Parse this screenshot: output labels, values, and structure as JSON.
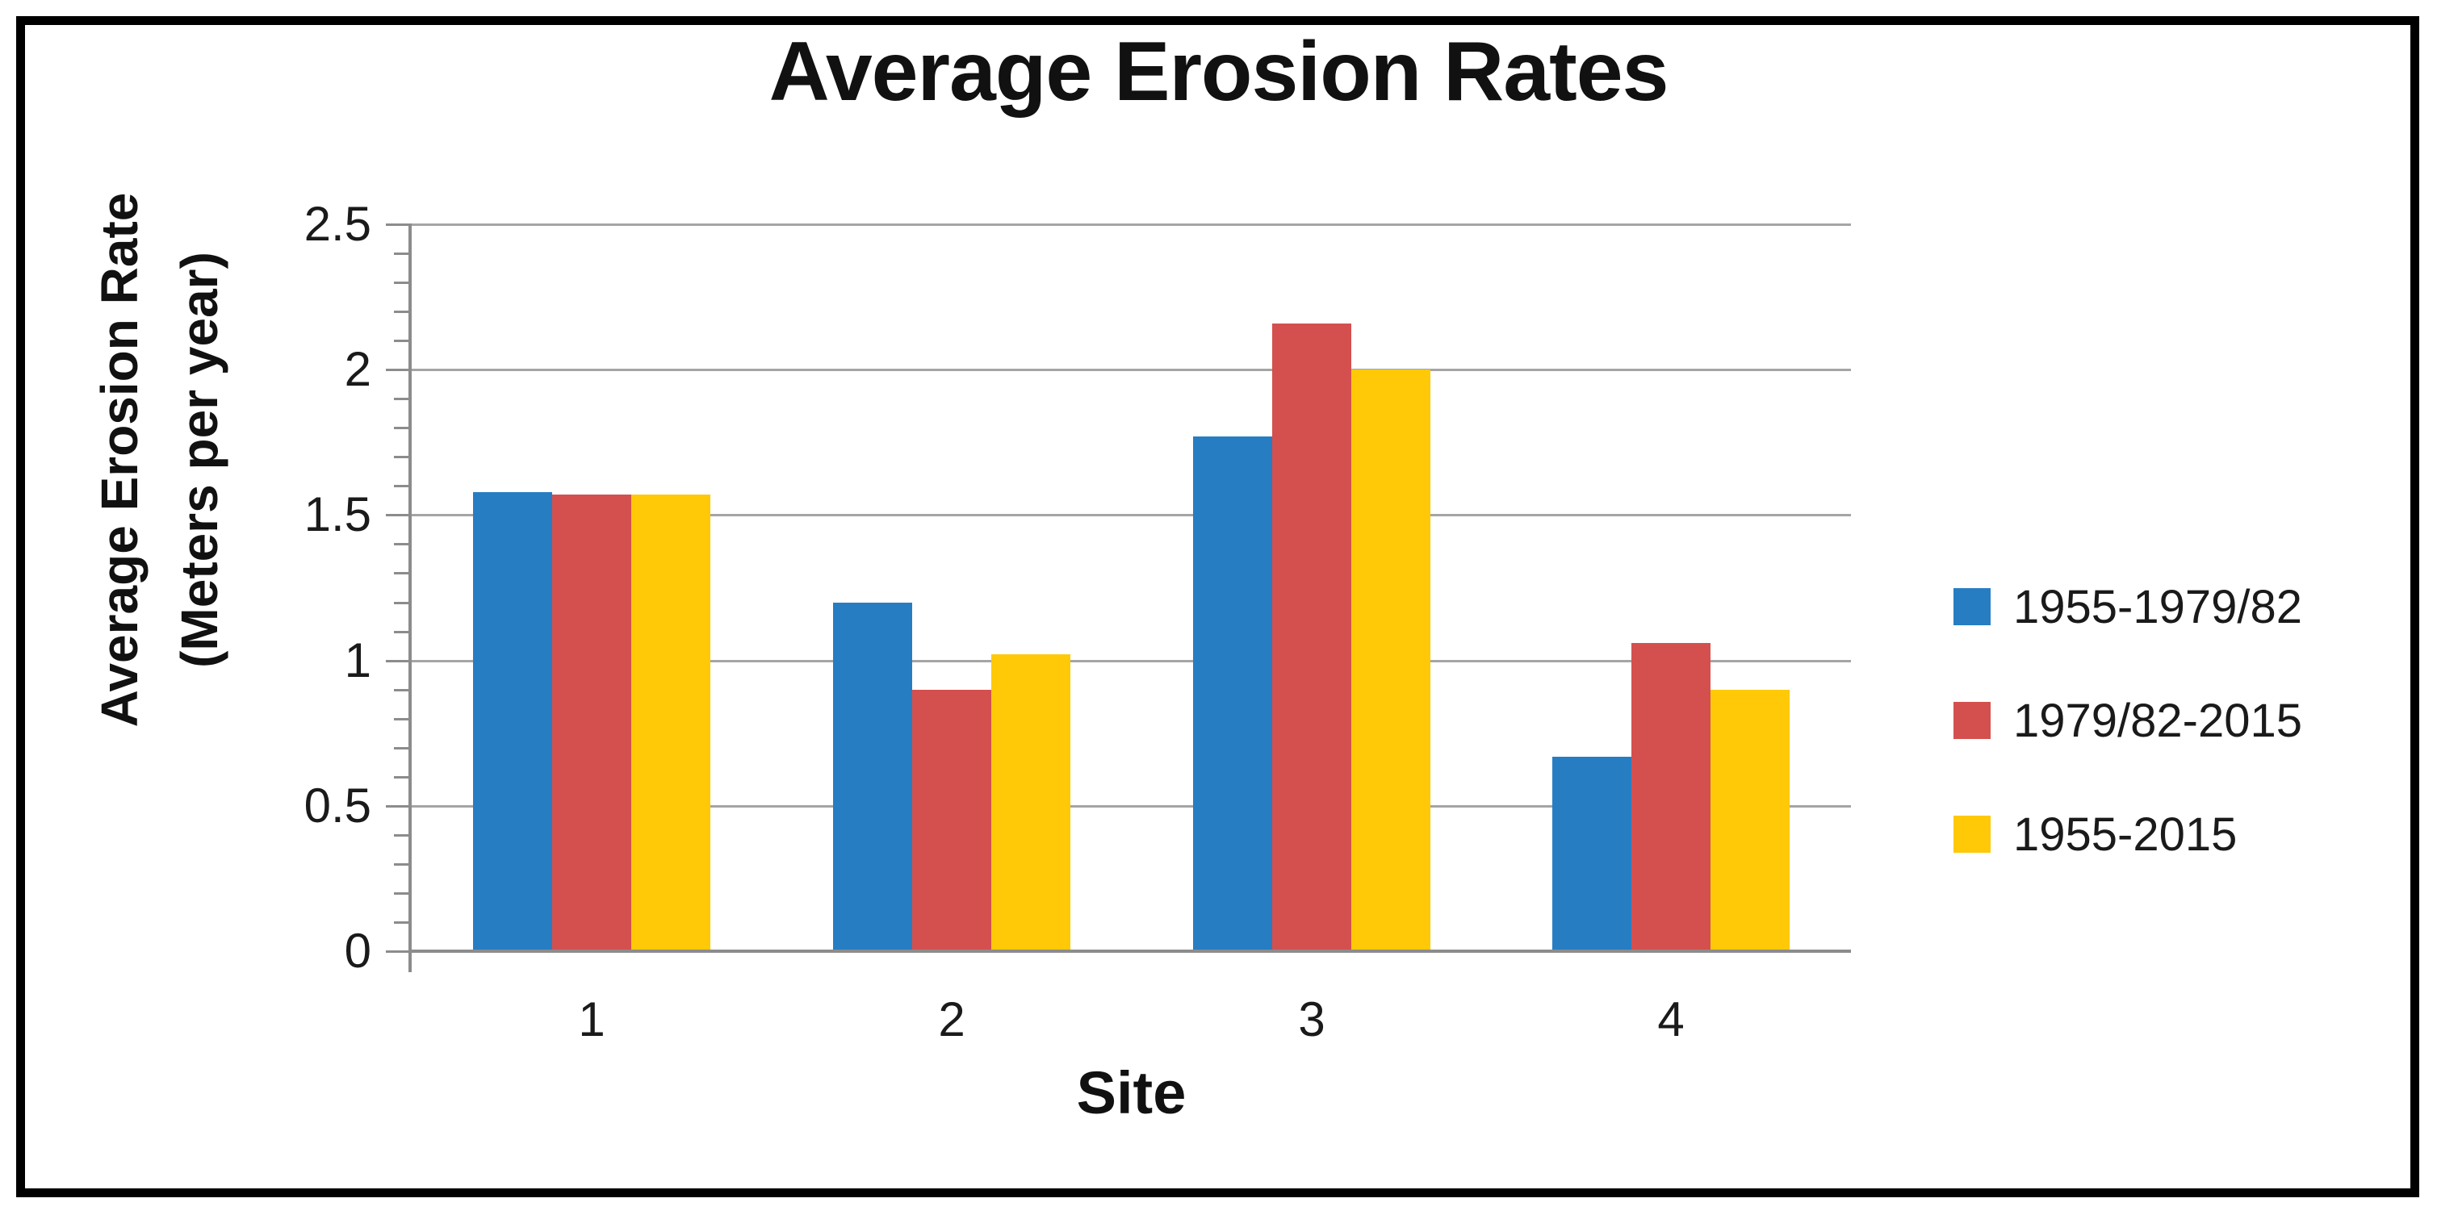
{
  "figure": {
    "border_color": "#000000",
    "background": "#ffffff"
  },
  "chart_data": {
    "type": "bar",
    "title": "Average Erosion Rates",
    "xlabel": "Site",
    "ylabel_lines": [
      "Average Erosion Rate",
      "(Meters per year)"
    ],
    "categories": [
      "1",
      "2",
      "3",
      "4"
    ],
    "series": [
      {
        "name": "1955-1979/82",
        "color": "#277DC2",
        "values": [
          1.58,
          1.2,
          1.77,
          0.67
        ]
      },
      {
        "name": "1979/82-2015",
        "color": "#D4504E",
        "values": [
          1.57,
          0.9,
          2.16,
          1.06
        ]
      },
      {
        "name": "1955-2015",
        "color": "#FFC907",
        "values": [
          1.57,
          1.02,
          2.0,
          0.9
        ]
      }
    ],
    "ylim": [
      0,
      2.5
    ],
    "ytick_step": 0.5,
    "ytick_labels": [
      "0",
      "0.5",
      "1",
      "1.5",
      "2",
      "2.5"
    ],
    "minor_tick_step": 0.1,
    "grid": true,
    "legend_position": "right",
    "colors": {
      "gridline": "#A5A5A5",
      "axis": "#8C8C8C",
      "text": "#1A1A1A",
      "title": "#111111"
    }
  }
}
